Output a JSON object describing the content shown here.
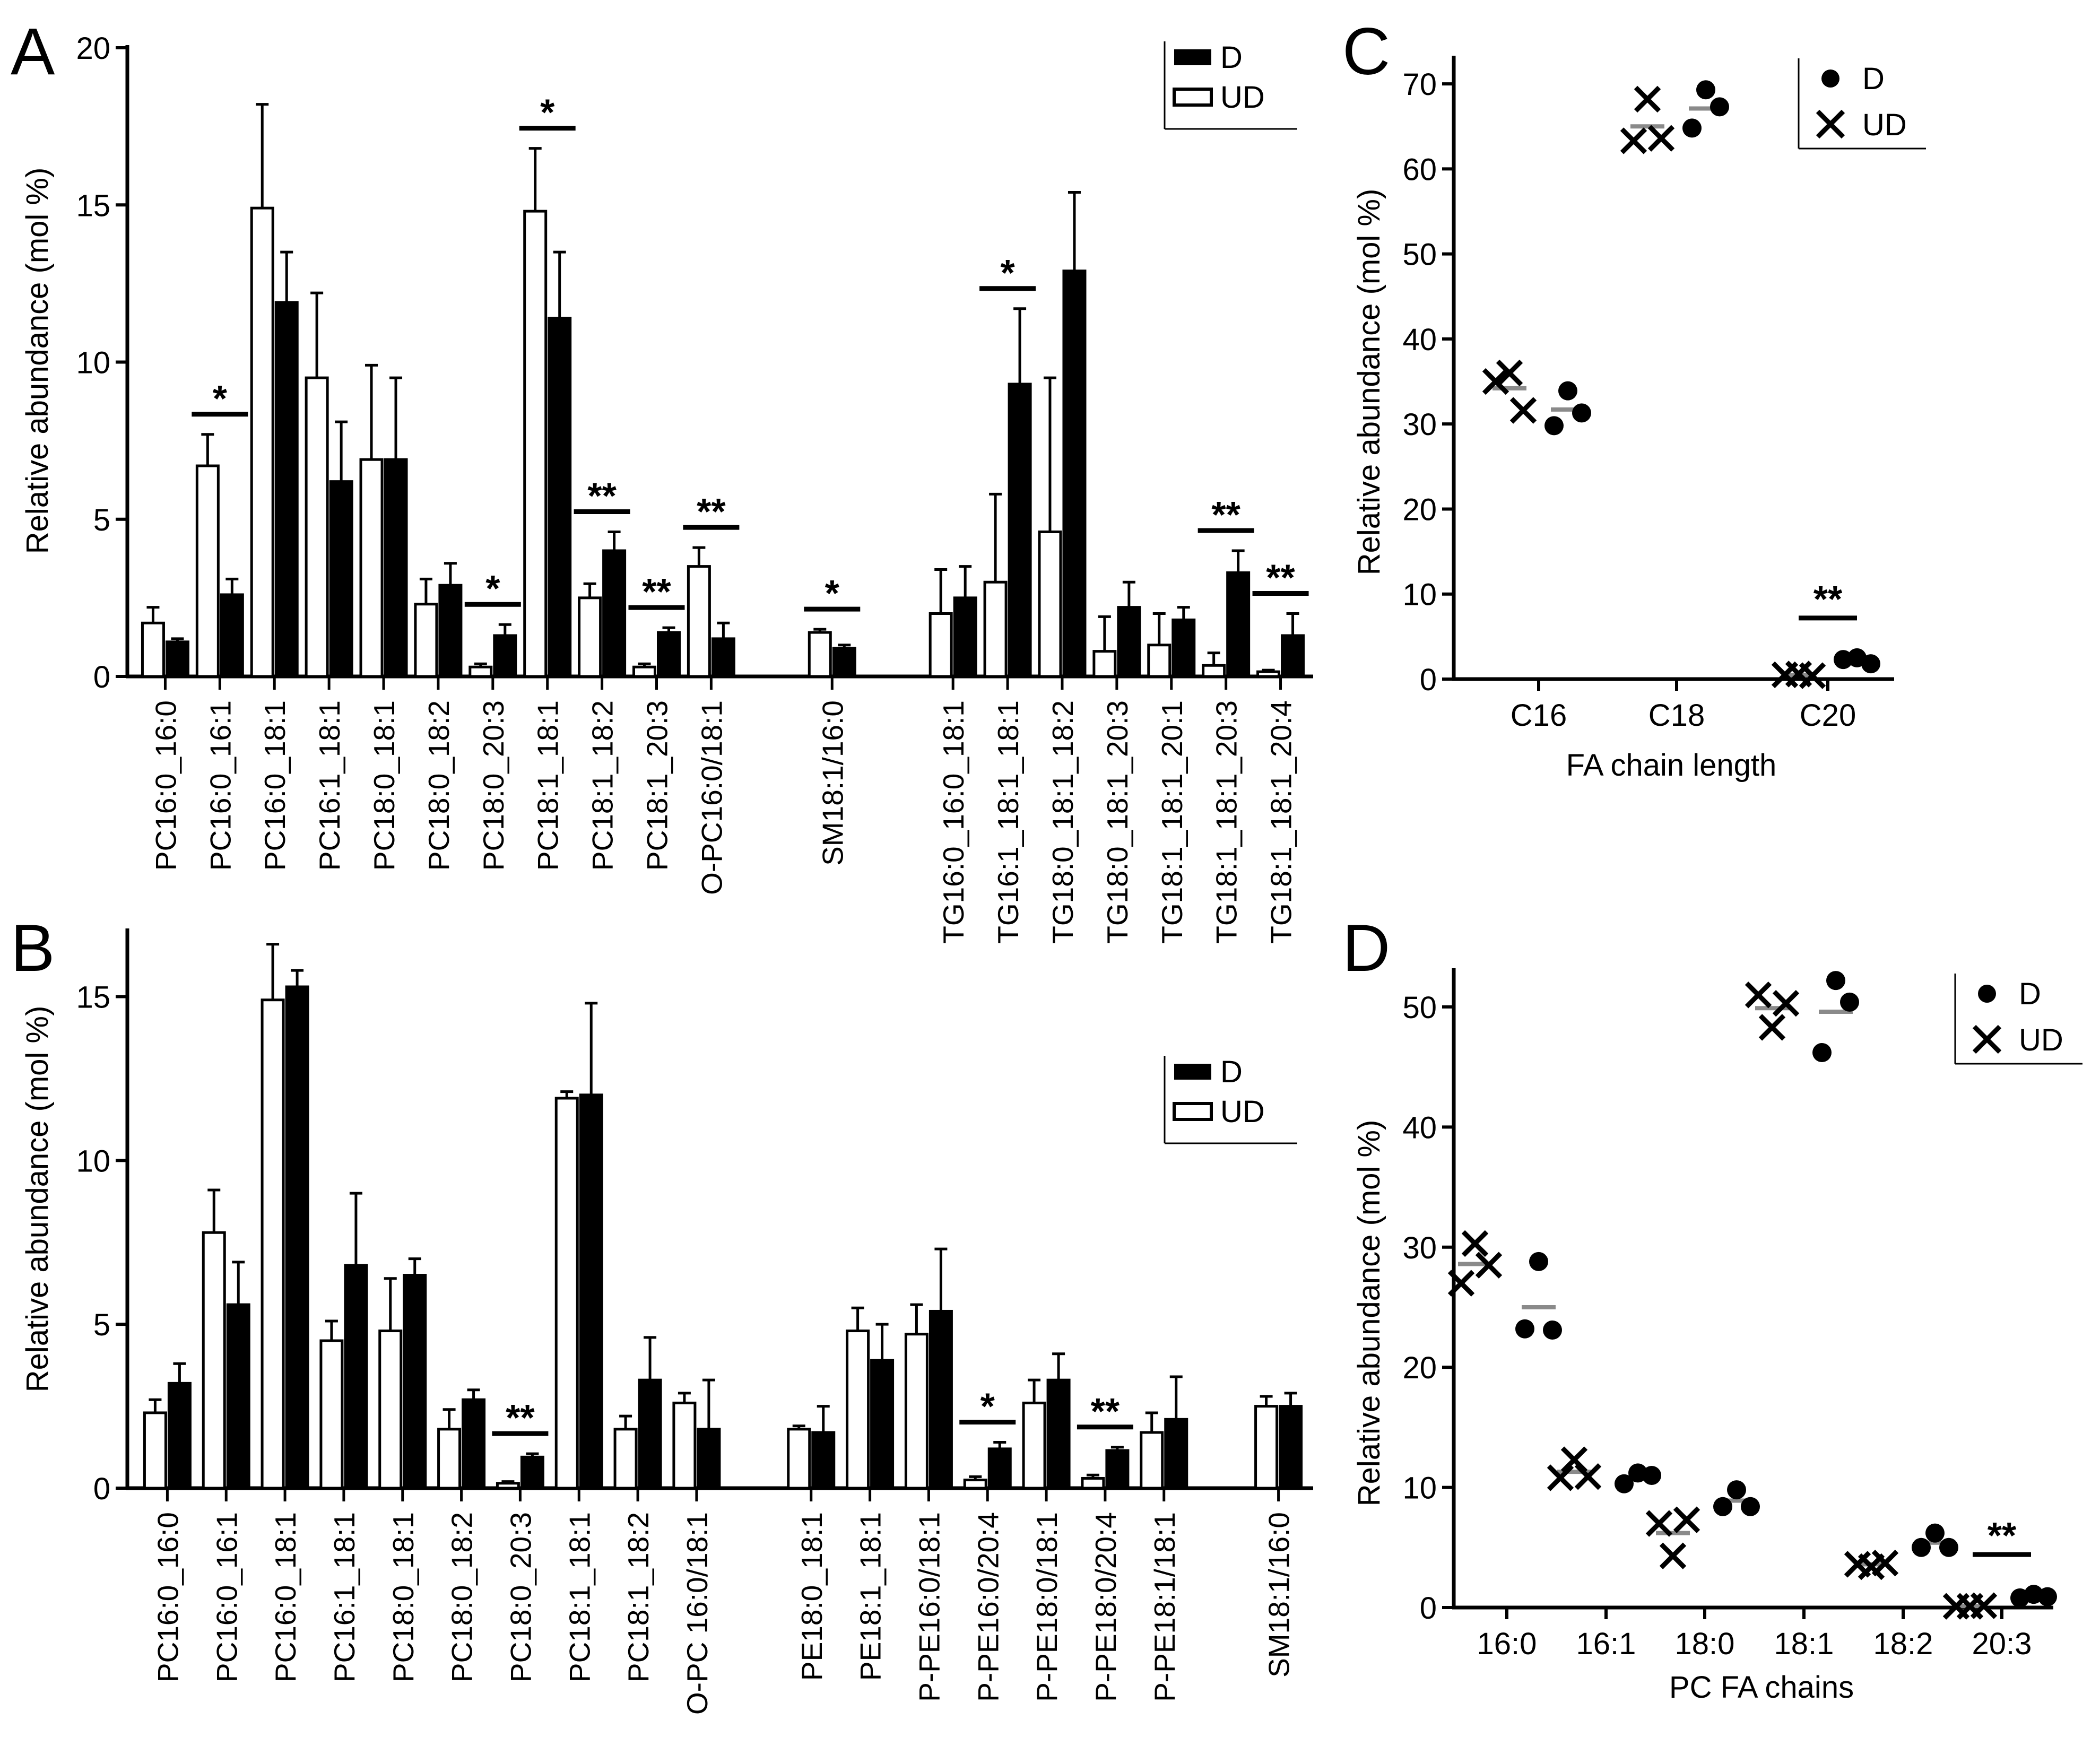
{
  "figure": {
    "panels": [
      {
        "letter": "A",
        "ylabel": "Relative  abundance (mol %)"
      },
      {
        "letter": "B",
        "ylabel": "Relative  abundance (mol %)"
      },
      {
        "letter": "C",
        "ylabel": "Relative  abundance (mol %)",
        "xlabel": "FA chain length"
      },
      {
        "letter": "D",
        "ylabel": "Relative  abundance (mol %)",
        "xlabel": "PC FA chains"
      }
    ],
    "legend_bar": {
      "d": "D",
      "ud": "UD"
    },
    "legend_dot": {
      "d": "D",
      "ud": "UD"
    }
  },
  "chart_data": [
    {
      "panel": "A",
      "type": "bar",
      "ylabel": "Relative  abundance (mol %)",
      "ylim": [
        0,
        20
      ],
      "yticks": [
        0,
        5,
        10,
        15,
        20
      ],
      "legend": {
        "position": "top-right",
        "entries": [
          "D",
          "UD"
        ]
      },
      "colors": {
        "UD": "#ffffff",
        "D": "#000000"
      },
      "categories": [
        "PC16:0_16:0",
        "PC16:0_16:1",
        "PC16:0_18:1",
        "PC16:1_18:1",
        "PC18:0_18:1",
        "PC18:0_18:2",
        "PC18:0_20:3",
        "PC18:1_18:1",
        "PC18:1_18:2",
        "PC18:1_20:3",
        "O-PC16:0/18:1",
        "SM18:1/16:0",
        "TG16:0_16:0_18:1",
        "TG16:1_18:1_18:1",
        "TG18:0_18:1_18:2",
        "TG18:0_18:1_20:3",
        "TG18:1_18:1_20:1",
        "TG18:1_18:1_20:3",
        "TG18:1_18:1_20:4"
      ],
      "series": [
        {
          "name": "UD",
          "values": [
            1.7,
            6.7,
            14.9,
            9.5,
            6.9,
            2.3,
            0.3,
            14.8,
            2.5,
            0.3,
            3.5,
            1.4,
            2.0,
            3.0,
            4.6,
            0.8,
            1.0,
            0.35,
            0.15
          ],
          "errors": [
            0.5,
            1.0,
            3.3,
            2.7,
            3.0,
            0.8,
            0.1,
            2.0,
            0.45,
            0.1,
            0.6,
            0.1,
            1.4,
            2.8,
            4.9,
            1.1,
            1.0,
            0.4,
            0.05
          ]
        },
        {
          "name": "D",
          "values": [
            1.1,
            2.6,
            11.9,
            6.2,
            6.9,
            2.9,
            1.3,
            11.4,
            4.0,
            1.4,
            1.2,
            0.9,
            2.5,
            9.3,
            12.9,
            2.2,
            1.8,
            3.3,
            1.3
          ],
          "errors": [
            0.1,
            0.5,
            1.6,
            1.9,
            2.6,
            0.7,
            0.35,
            2.1,
            0.6,
            0.15,
            0.5,
            0.1,
            1.0,
            2.4,
            2.5,
            0.8,
            0.4,
            0.7,
            0.7
          ]
        }
      ],
      "significance": [
        {
          "category": 1,
          "label": "*"
        },
        {
          "category": 6,
          "label": "*"
        },
        {
          "category": 7,
          "label": "*"
        },
        {
          "category": 8,
          "label": "**"
        },
        {
          "category": 9,
          "label": "**"
        },
        {
          "category": 10,
          "label": "**"
        },
        {
          "category": 11,
          "label": "*"
        },
        {
          "category": 13,
          "label": "*"
        },
        {
          "category": 17,
          "label": "**"
        },
        {
          "category": 18,
          "label": "**"
        }
      ]
    },
    {
      "panel": "B",
      "type": "bar",
      "ylabel": "Relative  abundance (mol %)",
      "ylim": [
        0,
        17
      ],
      "yticks": [
        0,
        5,
        10,
        15
      ],
      "legend": {
        "position": "top-right",
        "entries": [
          "D",
          "UD"
        ]
      },
      "colors": {
        "UD": "#ffffff",
        "D": "#000000"
      },
      "categories": [
        "PC16:0_16:0",
        "PC16:0_16:1",
        "PC16:0_18:1",
        "PC16:1_18:1",
        "PC18:0_18:1",
        "PC18:0_18:2",
        "PC18:0_20:3",
        "PC18:1_18:1",
        "PC18:1_18:2",
        "O-PC 16:0/18:1",
        "PE18:0_18:1",
        "PE18:1_18:1",
        "P-PE16:0/18:1",
        "P-PE16:0/20:4",
        "P-PE18:0/18:1",
        "P-PE18:0/20:4",
        "P-PE18:1/18:1",
        "SM18:1/16:0"
      ],
      "series": [
        {
          "name": "UD",
          "values": [
            2.3,
            7.8,
            14.9,
            4.5,
            4.8,
            1.8,
            0.15,
            11.9,
            1.8,
            2.6,
            1.8,
            4.8,
            4.7,
            0.25,
            2.6,
            0.3,
            1.7,
            2.5
          ],
          "errors": [
            0.4,
            1.3,
            1.7,
            0.6,
            1.6,
            0.6,
            0.05,
            0.2,
            0.4,
            0.3,
            0.1,
            0.7,
            0.9,
            0.1,
            0.7,
            0.1,
            0.6,
            0.3
          ]
        },
        {
          "name": "D",
          "values": [
            3.2,
            5.6,
            15.3,
            6.8,
            6.5,
            2.7,
            0.95,
            12.0,
            3.3,
            1.8,
            1.7,
            3.9,
            5.4,
            1.2,
            3.3,
            1.15,
            2.1,
            2.5
          ],
          "errors": [
            0.6,
            1.3,
            0.5,
            2.2,
            0.5,
            0.3,
            0.1,
            2.8,
            1.3,
            1.5,
            0.8,
            1.1,
            1.9,
            0.2,
            0.8,
            0.1,
            1.3,
            0.4
          ]
        }
      ],
      "significance": [
        {
          "category": 6,
          "label": "**"
        },
        {
          "category": 13,
          "label": "*"
        },
        {
          "category": 15,
          "label": "**"
        }
      ]
    },
    {
      "panel": "C",
      "type": "scatter",
      "xlabel": "FA chain length",
      "ylabel": "Relative  abundance (mol %)",
      "ylim": [
        0,
        73
      ],
      "yticks": [
        0,
        10,
        20,
        30,
        40,
        50,
        60,
        70
      ],
      "legend": {
        "position": "top-right",
        "entries": [
          "D",
          "UD"
        ]
      },
      "categories": [
        "C16",
        "C18",
        "C20"
      ],
      "series": [
        {
          "name": "UD",
          "marker": "x",
          "points": [
            [
              35.0,
              36.0,
              31.6
            ],
            [
              63.3,
              68.2,
              63.6
            ],
            [
              0.5,
              0.6,
              0.4
            ]
          ],
          "means": [
            34.2,
            65.0,
            0.5
          ]
        },
        {
          "name": "D",
          "marker": "dot",
          "points": [
            [
              29.8,
              33.9,
              31.3
            ],
            [
              64.8,
              69.3,
              67.3
            ],
            [
              2.3,
              2.5,
              1.8
            ]
          ],
          "means": [
            31.7,
            67.1,
            2.2
          ]
        }
      ],
      "significance": [
        {
          "category": 2,
          "label": "**"
        }
      ]
    },
    {
      "panel": "D",
      "type": "scatter",
      "xlabel": "PC FA chains",
      "ylabel": "Relative  abundance (mol %)",
      "ylim": [
        0,
        53
      ],
      "yticks": [
        0,
        10,
        20,
        30,
        40,
        50
      ],
      "legend": {
        "position": "top-right",
        "entries": [
          "D",
          "UD"
        ]
      },
      "categories": [
        "16:0",
        "16:1",
        "18:0",
        "18:1",
        "18:2",
        "20:3"
      ],
      "series": [
        {
          "name": "UD",
          "marker": "x",
          "points": [
            [
              27.0,
              30.3,
              28.5
            ],
            [
              10.8,
              12.3,
              10.9
            ],
            [
              7.0,
              4.3,
              7.3
            ],
            [
              51.0,
              48.3,
              50.3
            ],
            [
              3.6,
              3.4,
              3.7
            ],
            [
              0.1,
              0.1,
              0.15
            ]
          ],
          "means": [
            28.6,
            11.3,
            6.2,
            49.9,
            3.6,
            0.12
          ]
        },
        {
          "name": "D",
          "marker": "dot",
          "points": [
            [
              23.2,
              28.8,
              23.1
            ],
            [
              10.3,
              11.2,
              11.0
            ],
            [
              8.4,
              9.8,
              8.4
            ],
            [
              46.2,
              52.2,
              50.4
            ],
            [
              5.0,
              6.2,
              5.0
            ],
            [
              0.8,
              1.1,
              0.9
            ]
          ],
          "means": [
            25.0,
            10.8,
            8.9,
            49.6,
            5.4,
            0.9
          ]
        }
      ],
      "significance": [
        {
          "category": 5,
          "label": "**"
        }
      ]
    }
  ]
}
